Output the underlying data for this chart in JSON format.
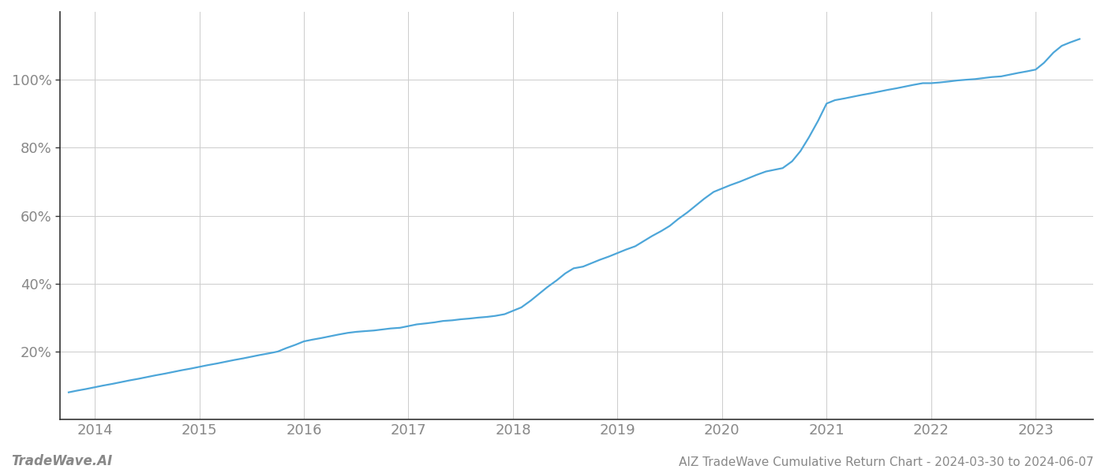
{
  "title": "",
  "footer_left": "TradeWave.AI",
  "footer_right": "AIZ TradeWave Cumulative Return Chart - 2024-03-30 to 2024-06-07",
  "line_color": "#4da6d9",
  "background_color": "#ffffff",
  "grid_color": "#cccccc",
  "text_color": "#888888",
  "spine_color": "#333333",
  "x_years": [
    2014,
    2015,
    2016,
    2017,
    2018,
    2019,
    2020,
    2021,
    2022,
    2023
  ],
  "x_values": [
    2013.75,
    2013.83,
    2013.92,
    2014.0,
    2014.08,
    2014.17,
    2014.25,
    2014.33,
    2014.42,
    2014.5,
    2014.58,
    2014.67,
    2014.75,
    2014.83,
    2014.92,
    2015.0,
    2015.08,
    2015.17,
    2015.25,
    2015.33,
    2015.42,
    2015.5,
    2015.58,
    2015.67,
    2015.75,
    2015.83,
    2015.92,
    2016.0,
    2016.08,
    2016.17,
    2016.25,
    2016.33,
    2016.42,
    2016.5,
    2016.58,
    2016.67,
    2016.75,
    2016.83,
    2016.92,
    2017.0,
    2017.08,
    2017.17,
    2017.25,
    2017.33,
    2017.42,
    2017.5,
    2017.58,
    2017.67,
    2017.75,
    2017.83,
    2017.92,
    2018.0,
    2018.08,
    2018.17,
    2018.25,
    2018.33,
    2018.42,
    2018.5,
    2018.58,
    2018.67,
    2018.75,
    2018.83,
    2018.92,
    2019.0,
    2019.08,
    2019.17,
    2019.25,
    2019.33,
    2019.42,
    2019.5,
    2019.58,
    2019.67,
    2019.75,
    2019.83,
    2019.92,
    2020.0,
    2020.08,
    2020.17,
    2020.25,
    2020.33,
    2020.42,
    2020.5,
    2020.58,
    2020.67,
    2020.75,
    2020.83,
    2020.92,
    2021.0,
    2021.08,
    2021.17,
    2021.25,
    2021.33,
    2021.42,
    2021.5,
    2021.58,
    2021.67,
    2021.75,
    2021.83,
    2021.92,
    2022.0,
    2022.08,
    2022.17,
    2022.25,
    2022.33,
    2022.42,
    2022.5,
    2022.58,
    2022.67,
    2022.75,
    2022.83,
    2022.92,
    2023.0,
    2023.08,
    2023.17,
    2023.25,
    2023.33,
    2023.42
  ],
  "y_values": [
    8,
    8.5,
    9,
    9.5,
    10,
    10.5,
    11,
    11.5,
    12,
    12.5,
    13,
    13.5,
    14,
    14.5,
    15,
    15.5,
    16,
    16.5,
    17,
    17.5,
    18,
    18.5,
    19,
    19.5,
    20,
    21,
    22,
    23,
    23.5,
    24,
    24.5,
    25,
    25.5,
    25.8,
    26,
    26.2,
    26.5,
    26.8,
    27,
    27.5,
    28,
    28.3,
    28.6,
    29,
    29.2,
    29.5,
    29.7,
    30,
    30.2,
    30.5,
    31,
    32,
    33,
    35,
    37,
    39,
    41,
    43,
    44.5,
    45,
    46,
    47,
    48,
    49,
    50,
    51,
    52.5,
    54,
    55.5,
    57,
    59,
    61,
    63,
    65,
    67,
    68,
    69,
    70,
    71,
    72,
    73,
    73.5,
    74,
    76,
    79,
    83,
    88,
    93,
    94,
    94.5,
    95,
    95.5,
    96,
    96.5,
    97,
    97.5,
    98,
    98.5,
    99,
    99,
    99.2,
    99.5,
    99.8,
    100,
    100.2,
    100.5,
    100.8,
    101,
    101.5,
    102,
    102.5,
    103,
    105,
    108,
    110,
    111,
    112
  ],
  "ylim": [
    0,
    120
  ],
  "yticks": [
    20,
    40,
    60,
    80,
    100
  ],
  "xlim": [
    2013.67,
    2023.55
  ],
  "line_width": 1.6
}
